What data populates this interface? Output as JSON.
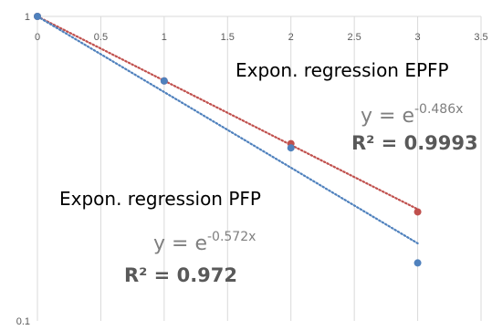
{
  "chart_data": {
    "type": "scatter",
    "x_axis": {
      "min": 0,
      "max": 3.5,
      "position_at_y": 1,
      "ticks": [
        0,
        0.5,
        1,
        1.5,
        2,
        2.5,
        3,
        3.5
      ],
      "tick_labels": [
        "0",
        "0.5",
        "1",
        "1.5",
        "2",
        "2.5",
        "3",
        "3.5"
      ]
    },
    "y_axis": {
      "scale": "log",
      "min": 0.1,
      "max": 1,
      "ticks": [
        0.1,
        1
      ],
      "tick_labels": [
        "0.1",
        "1"
      ]
    },
    "grid": {
      "vertical": true,
      "horizontal": false
    },
    "series": [
      {
        "id": "epfp",
        "color": "#c0504d",
        "points": [
          {
            "x": 0,
            "y": 1.0
          },
          {
            "x": 1,
            "y": 0.614
          },
          {
            "x": 2,
            "y": 0.382
          },
          {
            "x": 3,
            "y": 0.228
          }
        ],
        "trendline": {
          "type": "exponential",
          "a": 1,
          "b": -0.486,
          "dotted": true
        }
      },
      {
        "id": "pfp",
        "color": "#4f81bd",
        "points": [
          {
            "x": 0,
            "y": 1.0
          },
          {
            "x": 1,
            "y": 0.614
          },
          {
            "x": 2,
            "y": 0.37
          },
          {
            "x": 3,
            "y": 0.155
          }
        ],
        "trendline": {
          "type": "exponential",
          "a": 1,
          "b": -0.572,
          "dotted": true
        }
      }
    ],
    "annotations": [
      {
        "id": "epfp",
        "title": "Expon. regression EPFP",
        "equation_base": "y = e",
        "equation_exponent": "-0.486x",
        "r_squared": "R² = 0.9993"
      },
      {
        "id": "pfp",
        "title": "Expon. regression PFP",
        "equation_base": "y = e",
        "equation_exponent": "-0.572x",
        "r_squared": "R² = 0.972"
      }
    ]
  }
}
